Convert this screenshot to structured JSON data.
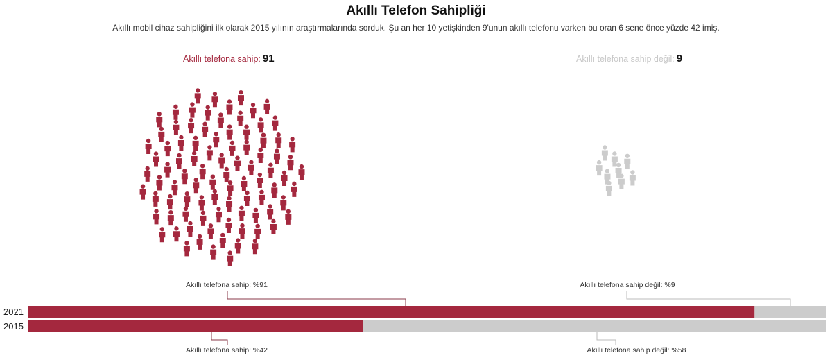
{
  "title": "Akıllı Telefon Sahipliği",
  "subtitle": "Akıllı mobil cihaz sahipliğini ilk olarak 2015 yılının araştırmalarında sorduk. Şu an her 10 yetişkinden 9'unun akıllı telefonu varken bu oran 6 sene önce yüzde 42 imiş.",
  "chart_data": {
    "type": "bar",
    "groups": [
      {
        "label": "Akıllı telefona sahip:",
        "value": 91,
        "color": "#a4283e",
        "icon": "person-icon"
      },
      {
        "label": "Akıllı telefona sahip değil:",
        "value": 9,
        "color": "#cccccc",
        "icon": "person-icon"
      }
    ],
    "categories": [
      "2021",
      "2015"
    ],
    "series": [
      {
        "name": "Akıllı telefona sahip",
        "values": [
          91,
          42
        ],
        "color": "#a4283e"
      },
      {
        "name": "Akıllı telefona sahip değil",
        "values": [
          9,
          58
        ],
        "color": "#cccccc"
      }
    ],
    "annotations": {
      "r2021_own": "Akıllı telefona sahip: %91",
      "r2021_not": "Akıllı telefona sahip değil: %9",
      "r2015_own": "Akıllı telefona sahip: %42",
      "r2015_not": "Akıllı telefona sahip değil: %58"
    },
    "xlim": [
      0,
      100
    ]
  }
}
